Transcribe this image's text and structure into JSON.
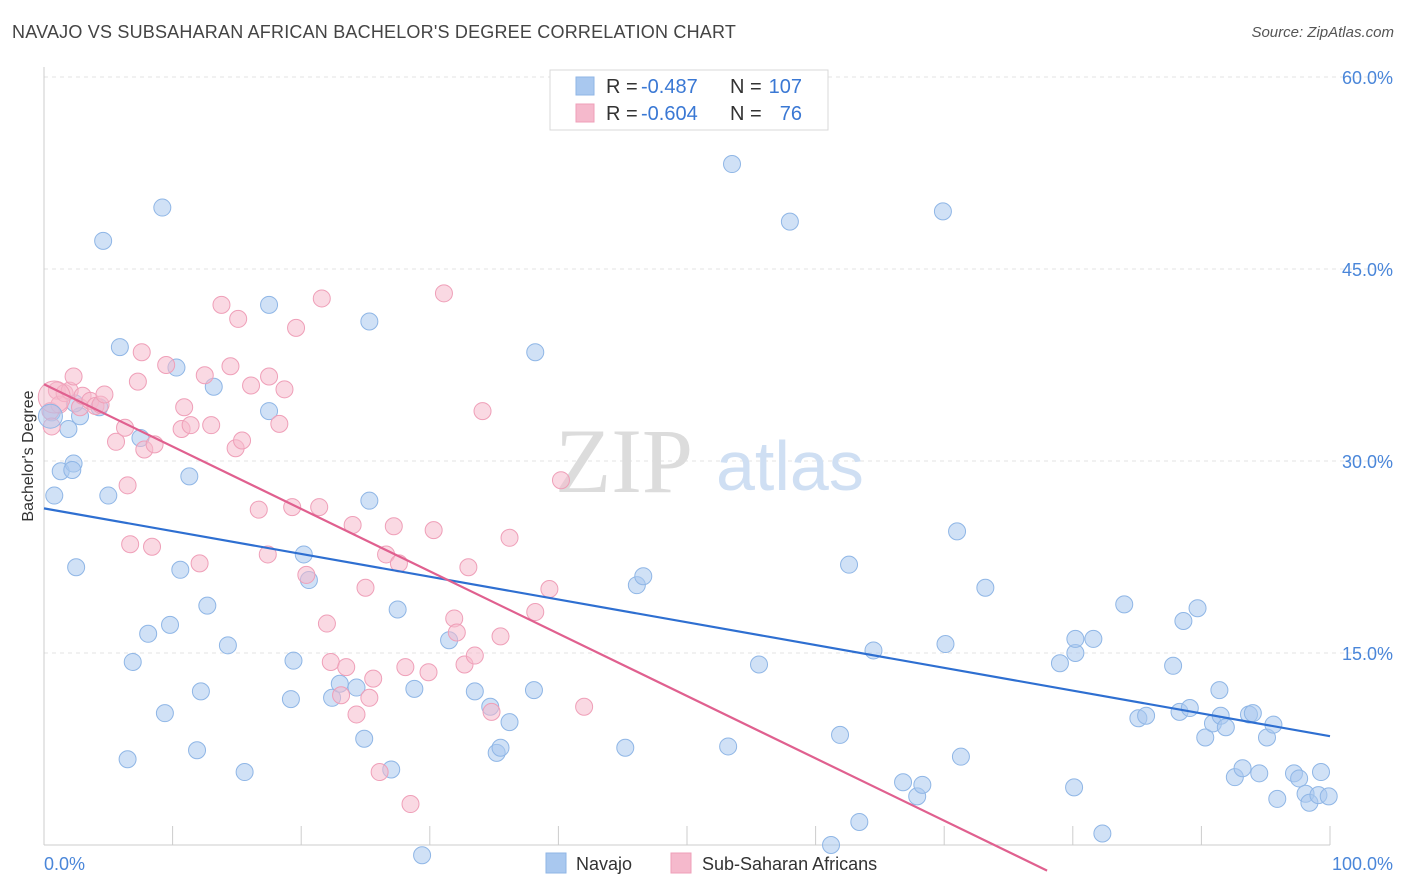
{
  "title": "NAVAJO VS SUBSAHARAN AFRICAN BACHELOR'S DEGREE CORRELATION CHART",
  "source": "Source: ZipAtlas.com",
  "watermark": {
    "zip": "ZIP",
    "atlas": "atlas"
  },
  "legend_top": {
    "rows": [
      {
        "r_label": "R =",
        "r_value": "-0.487",
        "n_label": "N =",
        "n_value": "107",
        "color": "#a9c8ef"
      },
      {
        "r_label": "R =",
        "r_value": "-0.604",
        "n_label": "N =",
        "n_value": "76",
        "color": "#f5b9cc"
      }
    ]
  },
  "chart_data": {
    "type": "scatter",
    "xlabel": "",
    "ylabel": "Bachelor's Degree",
    "xlim": [
      0,
      100
    ],
    "ylim": [
      0,
      60
    ],
    "x_tick_labels": [
      "0.0%",
      "100.0%"
    ],
    "y_ticks": [
      15,
      30,
      45,
      60
    ],
    "y_tick_labels": [
      "15.0%",
      "30.0%",
      "45.0%",
      "60.0%"
    ],
    "grid": true,
    "legend_position": "bottom-center",
    "series": [
      {
        "name": "Navajo",
        "color": "#a9c8ef",
        "stroke": "#8fb6e6",
        "line_color": "#2e6fd1",
        "trend": [
          [
            0,
            26.3
          ],
          [
            100,
            8.5
          ]
        ],
        "points": [
          [
            0.8,
            27.3
          ],
          [
            1.3,
            29.2
          ],
          [
            2.3,
            29.8
          ],
          [
            2.2,
            29.3
          ],
          [
            2.5,
            21.7
          ],
          [
            2.8,
            33.5
          ],
          [
            4.3,
            34.2
          ],
          [
            5.0,
            27.3
          ],
          [
            4.6,
            47.2
          ],
          [
            5.9,
            38.9
          ],
          [
            6.5,
            6.7
          ],
          [
            6.9,
            14.3
          ],
          [
            7.5,
            31.8
          ],
          [
            8.1,
            16.5
          ],
          [
            9.2,
            49.8
          ],
          [
            9.4,
            10.3
          ],
          [
            9.8,
            17.2
          ],
          [
            10.3,
            37.3
          ],
          [
            10.6,
            21.5
          ],
          [
            11.3,
            28.8
          ],
          [
            11.9,
            7.4
          ],
          [
            12.2,
            12.0
          ],
          [
            12.7,
            18.7
          ],
          [
            13.2,
            35.8
          ],
          [
            14.3,
            15.6
          ],
          [
            15.6,
            5.7
          ],
          [
            17.5,
            33.9
          ],
          [
            17.5,
            42.2
          ],
          [
            19.2,
            11.4
          ],
          [
            19.4,
            14.4
          ],
          [
            20.2,
            22.7
          ],
          [
            20.6,
            20.7
          ],
          [
            22.4,
            11.5
          ],
          [
            23.0,
            12.6
          ],
          [
            24.3,
            12.3
          ],
          [
            24.9,
            8.3
          ],
          [
            25.3,
            40.9
          ],
          [
            25.3,
            26.9
          ],
          [
            27.0,
            5.9
          ],
          [
            27.5,
            18.4
          ],
          [
            28.8,
            12.2
          ],
          [
            29.4,
            -0.8
          ],
          [
            31.5,
            16.0
          ],
          [
            33.5,
            12.0
          ],
          [
            34.7,
            10.8
          ],
          [
            35.2,
            7.2
          ],
          [
            35.5,
            7.6
          ],
          [
            36.2,
            9.6
          ],
          [
            38.1,
            12.1
          ],
          [
            38.2,
            38.5
          ],
          [
            45.2,
            7.6
          ],
          [
            46.1,
            20.3
          ],
          [
            46.6,
            21.0
          ],
          [
            53.2,
            7.7
          ],
          [
            53.5,
            53.2
          ],
          [
            55.6,
            14.1
          ],
          [
            58.0,
            48.7
          ],
          [
            61.2,
            0.0
          ],
          [
            61.9,
            8.6
          ],
          [
            62.6,
            21.9
          ],
          [
            63.4,
            1.8
          ],
          [
            64.5,
            15.2
          ],
          [
            66.8,
            4.9
          ],
          [
            67.9,
            3.8
          ],
          [
            68.3,
            4.7
          ],
          [
            69.9,
            49.5
          ],
          [
            70.1,
            15.7
          ],
          [
            71.0,
            24.5
          ],
          [
            71.3,
            6.9
          ],
          [
            73.2,
            20.1
          ],
          [
            79.0,
            14.2
          ],
          [
            80.1,
            4.5
          ],
          [
            80.2,
            15.0
          ],
          [
            80.2,
            16.1
          ],
          [
            81.6,
            16.1
          ],
          [
            82.3,
            0.9
          ],
          [
            84.0,
            18.8
          ],
          [
            85.1,
            9.9
          ],
          [
            85.7,
            10.1
          ],
          [
            87.8,
            14.0
          ],
          [
            88.3,
            10.4
          ],
          [
            88.6,
            17.5
          ],
          [
            89.1,
            10.7
          ],
          [
            89.7,
            18.5
          ],
          [
            90.3,
            8.4
          ],
          [
            90.9,
            9.5
          ],
          [
            91.4,
            12.1
          ],
          [
            91.5,
            10.1
          ],
          [
            91.9,
            9.2
          ],
          [
            92.6,
            5.3
          ],
          [
            93.2,
            6.0
          ],
          [
            93.7,
            10.2
          ],
          [
            94.0,
            10.3
          ],
          [
            94.5,
            5.6
          ],
          [
            95.1,
            8.4
          ],
          [
            95.6,
            9.4
          ],
          [
            95.9,
            3.6
          ],
          [
            97.2,
            5.6
          ],
          [
            97.6,
            5.2
          ],
          [
            98.1,
            4.0
          ],
          [
            98.4,
            3.3
          ],
          [
            99.1,
            3.9
          ],
          [
            99.3,
            5.7
          ],
          [
            99.9,
            3.8
          ],
          [
            0.6,
            33.8
          ],
          [
            1.9,
            32.5
          ],
          [
            2.4,
            34.5
          ]
        ]
      },
      {
        "name": "Sub-Saharan Africans",
        "color": "#f5b9cc",
        "stroke": "#ef9fb8",
        "line_color": "#e0608f",
        "trend": [
          [
            0,
            36.0
          ],
          [
            78,
            -2.0
          ]
        ],
        "points": [
          [
            0.5,
            33.9
          ],
          [
            0.6,
            32.7
          ],
          [
            1.0,
            35.5
          ],
          [
            1.2,
            34.4
          ],
          [
            1.6,
            35.3
          ],
          [
            2.0,
            35.5
          ],
          [
            2.3,
            36.6
          ],
          [
            2.8,
            34.2
          ],
          [
            3.0,
            35.1
          ],
          [
            3.6,
            34.7
          ],
          [
            4.0,
            34.3
          ],
          [
            4.4,
            34.4
          ],
          [
            4.7,
            35.2
          ],
          [
            5.6,
            31.5
          ],
          [
            6.3,
            32.6
          ],
          [
            6.5,
            28.1
          ],
          [
            6.7,
            23.5
          ],
          [
            7.3,
            36.2
          ],
          [
            7.6,
            38.5
          ],
          [
            7.8,
            30.9
          ],
          [
            8.4,
            23.3
          ],
          [
            8.6,
            31.3
          ],
          [
            9.5,
            37.5
          ],
          [
            10.7,
            32.5
          ],
          [
            10.9,
            34.2
          ],
          [
            11.4,
            32.8
          ],
          [
            12.1,
            22.0
          ],
          [
            12.5,
            36.7
          ],
          [
            13.0,
            32.8
          ],
          [
            13.8,
            42.2
          ],
          [
            14.5,
            37.4
          ],
          [
            14.9,
            31.0
          ],
          [
            15.1,
            41.1
          ],
          [
            15.4,
            31.6
          ],
          [
            16.1,
            35.9
          ],
          [
            16.7,
            26.2
          ],
          [
            17.4,
            22.7
          ],
          [
            17.5,
            36.6
          ],
          [
            18.3,
            32.9
          ],
          [
            18.7,
            35.6
          ],
          [
            19.3,
            26.4
          ],
          [
            19.6,
            40.4
          ],
          [
            20.4,
            21.1
          ],
          [
            21.4,
            26.4
          ],
          [
            21.6,
            42.7
          ],
          [
            22.0,
            17.3
          ],
          [
            22.3,
            14.3
          ],
          [
            23.1,
            11.7
          ],
          [
            23.5,
            13.9
          ],
          [
            24.0,
            25.0
          ],
          [
            24.3,
            10.2
          ],
          [
            25.0,
            20.1
          ],
          [
            25.3,
            11.5
          ],
          [
            25.6,
            13.0
          ],
          [
            26.1,
            5.7
          ],
          [
            26.6,
            22.7
          ],
          [
            27.2,
            24.9
          ],
          [
            27.6,
            22.0
          ],
          [
            28.1,
            13.9
          ],
          [
            28.5,
            3.2
          ],
          [
            29.9,
            13.5
          ],
          [
            30.3,
            24.6
          ],
          [
            31.1,
            43.1
          ],
          [
            31.9,
            17.7
          ],
          [
            32.1,
            16.6
          ],
          [
            32.7,
            14.1
          ],
          [
            33.0,
            21.7
          ],
          [
            33.5,
            14.8
          ],
          [
            34.1,
            33.9
          ],
          [
            34.8,
            10.4
          ],
          [
            35.5,
            16.3
          ],
          [
            36.2,
            24.0
          ],
          [
            38.2,
            18.2
          ],
          [
            39.3,
            20.0
          ],
          [
            40.2,
            28.5
          ],
          [
            42.0,
            10.8
          ]
        ]
      }
    ]
  },
  "bottom_legend": {
    "navajo": "Navajo",
    "ssa": "Sub-Saharan Africans"
  }
}
